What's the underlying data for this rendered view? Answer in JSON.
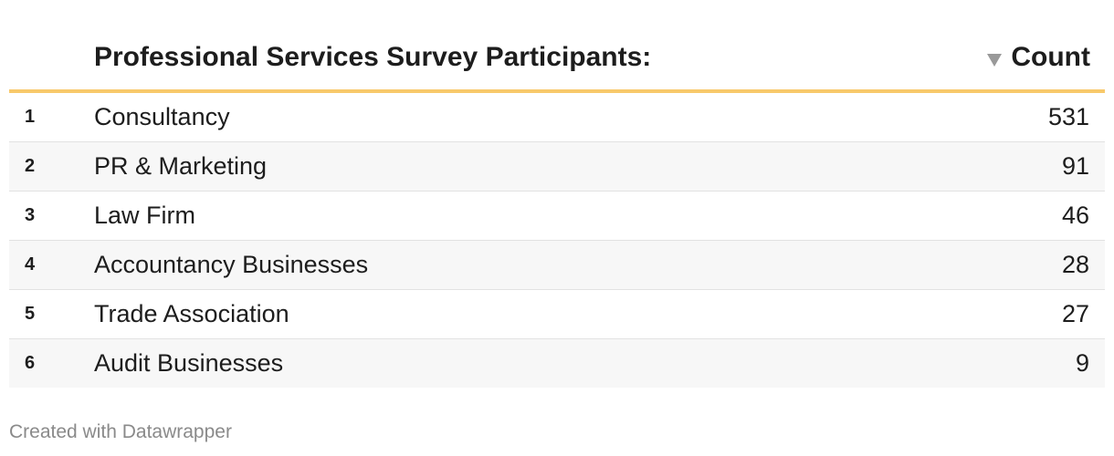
{
  "table": {
    "header": {
      "label_column": "Professional Services Survey Participants:",
      "value_column": "Count",
      "sort_icon": "sort-descending-icon"
    },
    "colors": {
      "header_rule": "#f8c96b",
      "alt_row": "#f7f7f7",
      "sort_icon": "#999999"
    }
  },
  "chart_data": {
    "type": "table",
    "columns": [
      "Professional Services Survey Participants:",
      "Count"
    ],
    "rows": [
      {
        "rank": "1",
        "label": "Consultancy",
        "value": "531"
      },
      {
        "rank": "2",
        "label": "PR & Marketing",
        "value": "91"
      },
      {
        "rank": "3",
        "label": "Law Firm",
        "value": "46"
      },
      {
        "rank": "4",
        "label": "Accountancy Businesses",
        "value": "28"
      },
      {
        "rank": "5",
        "label": "Trade Association",
        "value": "27"
      },
      {
        "rank": "6",
        "label": "Audit Businesses",
        "value": "9"
      }
    ]
  },
  "footer": {
    "credit": "Created with Datawrapper"
  }
}
